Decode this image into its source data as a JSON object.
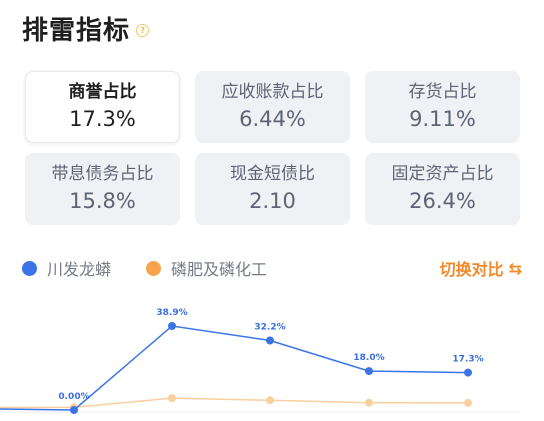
{
  "header": {
    "title": "排雷指标",
    "help_icon": "question-circle-icon",
    "help_glyph": "?"
  },
  "metrics": [
    {
      "label": "商誉占比",
      "value": "17.3%",
      "active": true
    },
    {
      "label": "应收账款占比",
      "value": "6.44%",
      "active": false
    },
    {
      "label": "存货占比",
      "value": "9.11%",
      "active": false
    },
    {
      "label": "带息债务占比",
      "value": "15.8%",
      "active": false
    },
    {
      "label": "现金短债比",
      "value": "2.10",
      "active": false
    },
    {
      "label": "固定资产占比",
      "value": "26.4%",
      "active": false
    }
  ],
  "legend": {
    "company": {
      "label": "川发龙蟒",
      "color": "#3b74e6"
    },
    "industry": {
      "label": "磷肥及磷化工",
      "color": "#f8a34c"
    },
    "compare_label": "切换对比",
    "compare_icon": "switch-icon"
  },
  "chart_data": {
    "type": "line",
    "x": [
      1,
      2,
      3,
      4,
      5,
      6
    ],
    "series": [
      {
        "name": "川发龙蟒",
        "color": "#3b74e6",
        "values": [
          0.5,
          0.0,
          38.9,
          32.2,
          18.0,
          17.3
        ],
        "labels": [
          null,
          "0.00%",
          "38.9%",
          "32.2%",
          "18.0%",
          "17.3%"
        ]
      },
      {
        "name": "磷肥及磷化工",
        "color": "#f8cf9f",
        "values": [
          1.2,
          1.2,
          5.5,
          4.5,
          3.4,
          3.3
        ]
      }
    ],
    "ylim": [
      0,
      45
    ],
    "grid": false
  }
}
